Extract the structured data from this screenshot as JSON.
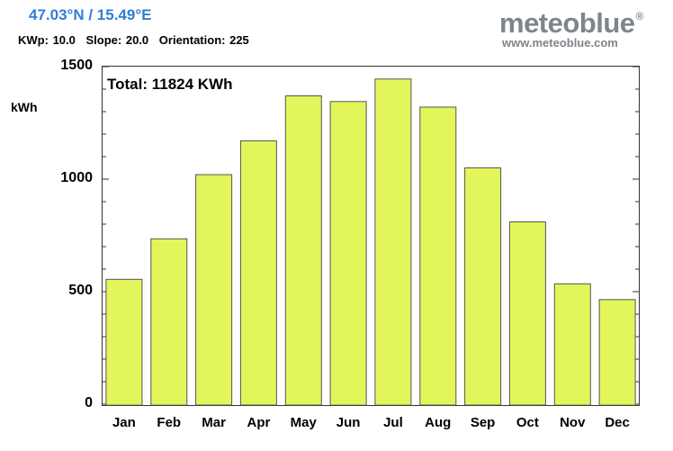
{
  "header": {
    "coords": "47.03°N / 15.49°E",
    "params": [
      {
        "label": "KWp:",
        "value": "10.0"
      },
      {
        "label": "Slope:",
        "value": "20.0"
      },
      {
        "label": "Orientation:",
        "value": "225"
      }
    ]
  },
  "brand": {
    "name": "meteoblue",
    "mark": "®",
    "url": "www.meteoblue.com"
  },
  "colors": {
    "bar_fill": "#e2f55a",
    "bar_stroke": "#555555",
    "coords_text": "#2f7fd6",
    "brand_text": "#7f858c"
  },
  "chart_data": {
    "type": "bar",
    "ylabel": "kWh",
    "annotation": "Total: 11824 KWh",
    "categories": [
      "Jan",
      "Feb",
      "Mar",
      "Apr",
      "May",
      "Jun",
      "Jul",
      "Aug",
      "Sep",
      "Oct",
      "Nov",
      "Dec"
    ],
    "values": [
      555,
      735,
      1020,
      1170,
      1370,
      1345,
      1445,
      1320,
      1050,
      810,
      535,
      465
    ],
    "ylim": [
      0,
      1500
    ],
    "yticks": [
      "0",
      "500",
      "1000",
      "1500"
    ],
    "ytick_values": [
      0,
      500,
      1000,
      1500
    ],
    "minor_tick_step": 100,
    "grid": false,
    "legend": "none"
  }
}
